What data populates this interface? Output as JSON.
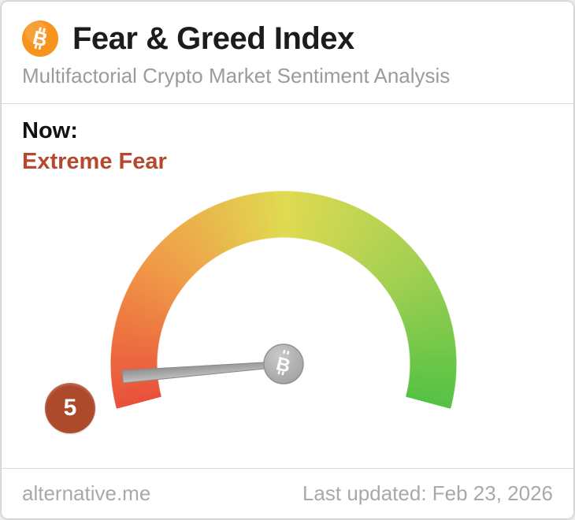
{
  "header": {
    "title": "Fear & Greed Index",
    "subtitle": "Multifactorial Crypto Market Sentiment Analysis"
  },
  "now": {
    "label": "Now:"
  },
  "chart_data": {
    "type": "gauge",
    "title": "Fear & Greed Index",
    "value": 5,
    "min": 0,
    "max": 100,
    "label": "Extreme Fear",
    "arc_span_degrees": 210,
    "color_stops": [
      {
        "pos": 0.0,
        "color": "#e9503a"
      },
      {
        "pos": 0.25,
        "color": "#f09a48"
      },
      {
        "pos": 0.5,
        "color": "#e0da51"
      },
      {
        "pos": 0.75,
        "color": "#a4d052"
      },
      {
        "pos": 1.0,
        "color": "#54c244"
      }
    ]
  },
  "colors": {
    "brand_orange": "#f7941e",
    "sentiment_text": "#b5492e",
    "badge_background": "#ad4a2b",
    "needle_gray": "#9e9e9e",
    "divider": "#dddddd",
    "muted_text": "#9b9b9b"
  },
  "icons": {
    "logo": "bitcoin-icon",
    "needle_hub": "bitcoin-icon"
  },
  "footer": {
    "source": "alternative.me",
    "updated": "Last updated: Feb 23, 2026"
  }
}
